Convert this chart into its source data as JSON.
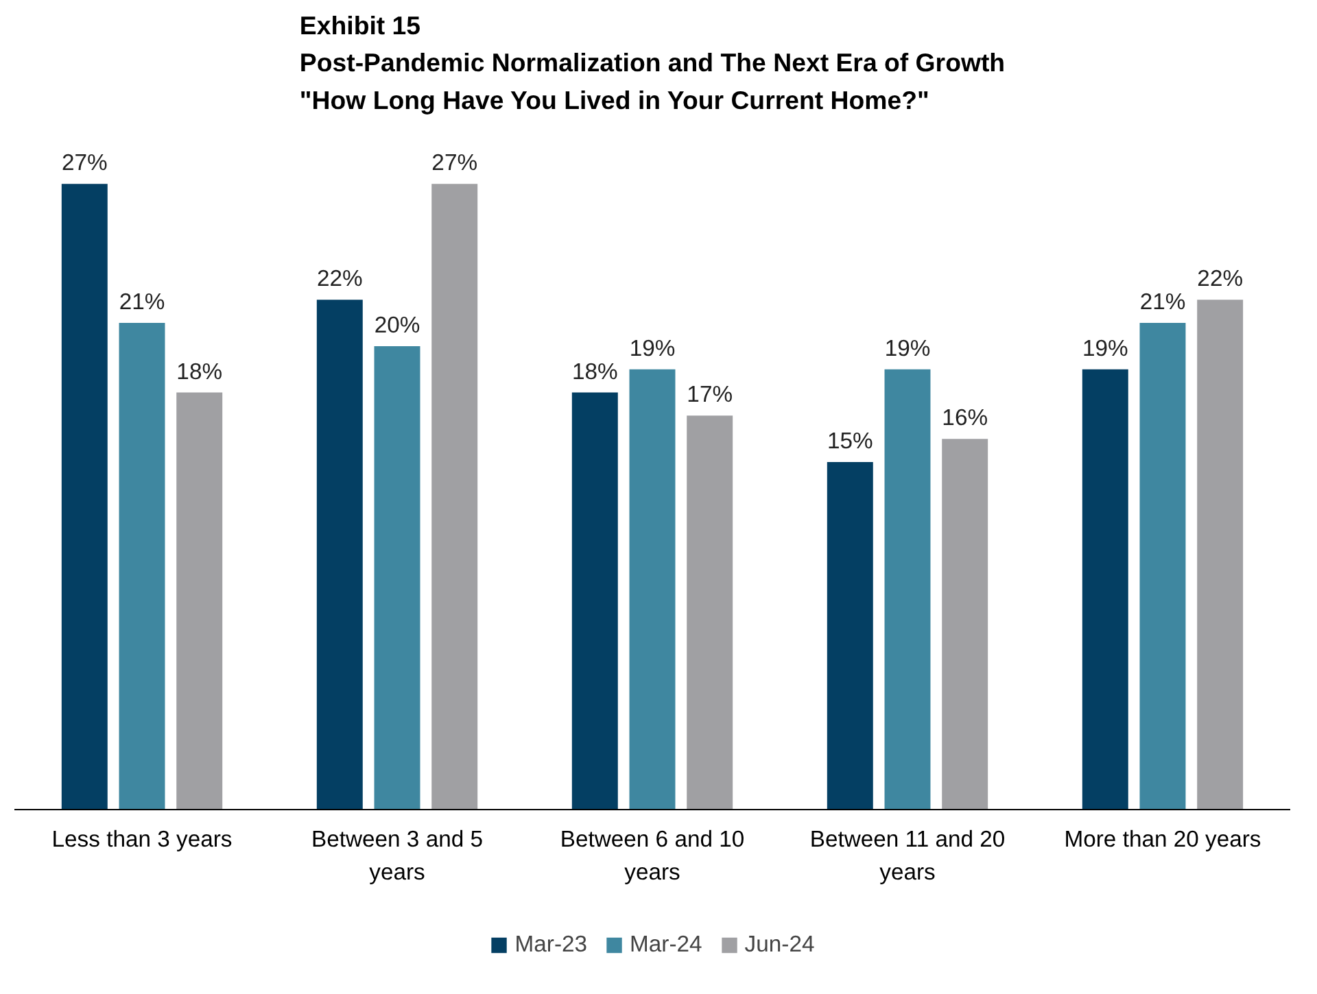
{
  "chart_data": {
    "type": "bar",
    "title": "Exhibit 15\nPost-Pandemic Normalization and The Next Era of Growth\n\"How Long Have You Lived in Your Current Home?\"",
    "categories": [
      "Less than 3 years",
      "Between 3 and 5\nyears",
      "Between 6 and 10\nyears",
      "Between 11 and 20\nyears",
      "More than 20 years"
    ],
    "series": [
      {
        "name": "Mar-23",
        "color": "#043f63",
        "values": [
          27,
          22,
          18,
          15,
          19
        ],
        "value_labels": [
          "27%",
          "22%",
          "18%",
          "15%",
          "19%"
        ]
      },
      {
        "name": "Mar-24",
        "color": "#3f87a0",
        "values": [
          21,
          20,
          19,
          19,
          21
        ],
        "value_labels": [
          "21%",
          "20%",
          "19%",
          "19%",
          "21%"
        ]
      },
      {
        "name": "Jun-24",
        "color": "#a0a0a3",
        "values": [
          18,
          27,
          17,
          16,
          22
        ],
        "value_labels": [
          "18%",
          "27%",
          "17%",
          "16%",
          "22%"
        ]
      }
    ],
    "tick_labels": "x",
    "legend": "bottom",
    "grid": false
  }
}
